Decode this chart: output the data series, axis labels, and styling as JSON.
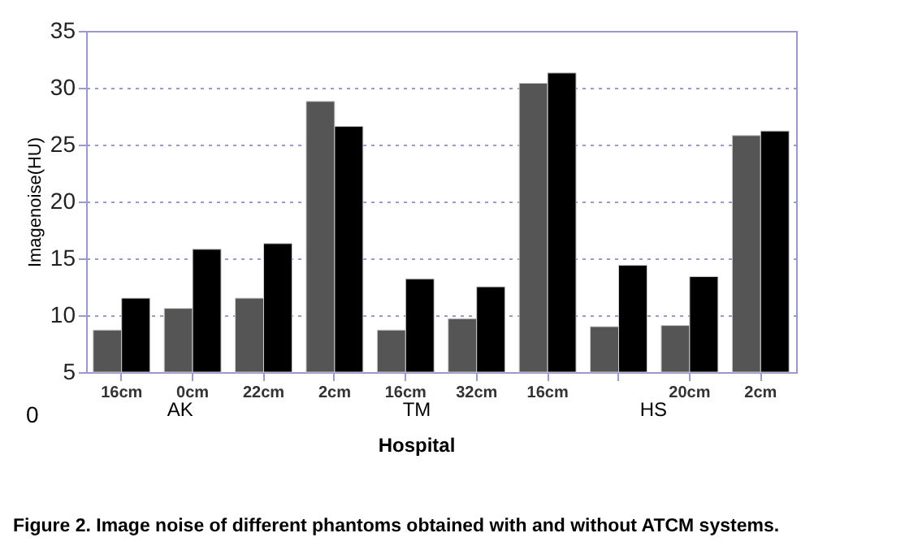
{
  "chart_data": {
    "type": "bar",
    "xlabel": "Hospital",
    "ylabel": "Imagenoise(HU)",
    "categories": [
      "16cm",
      "0cm",
      "22cm",
      "2cm",
      "16cm",
      "32cm",
      "16cm",
      null,
      "20cm",
      "2cm"
    ],
    "series": [
      {
        "color": "#555555",
        "values": [
          8.7,
          10.6,
          11.5,
          28.8,
          8.7,
          9.7,
          30.4,
          9.0,
          9.1,
          25.8
        ]
      },
      {
        "color": "#000000",
        "values": [
          11.5,
          15.8,
          16.3,
          26.6,
          13.2,
          12.5,
          31.3,
          14.4,
          13.4,
          26.2
        ]
      }
    ],
    "ylim": [
      5,
      35
    ],
    "yticks": [
      5,
      10,
      15,
      20,
      25,
      30,
      35
    ],
    "grid": "y",
    "legend": false,
    "annotations": [
      "0",
      "AK",
      "TM",
      "HS",
      "Figure 2. Image noise of different phantoms obtained with and without ATCM systems."
    ]
  }
}
